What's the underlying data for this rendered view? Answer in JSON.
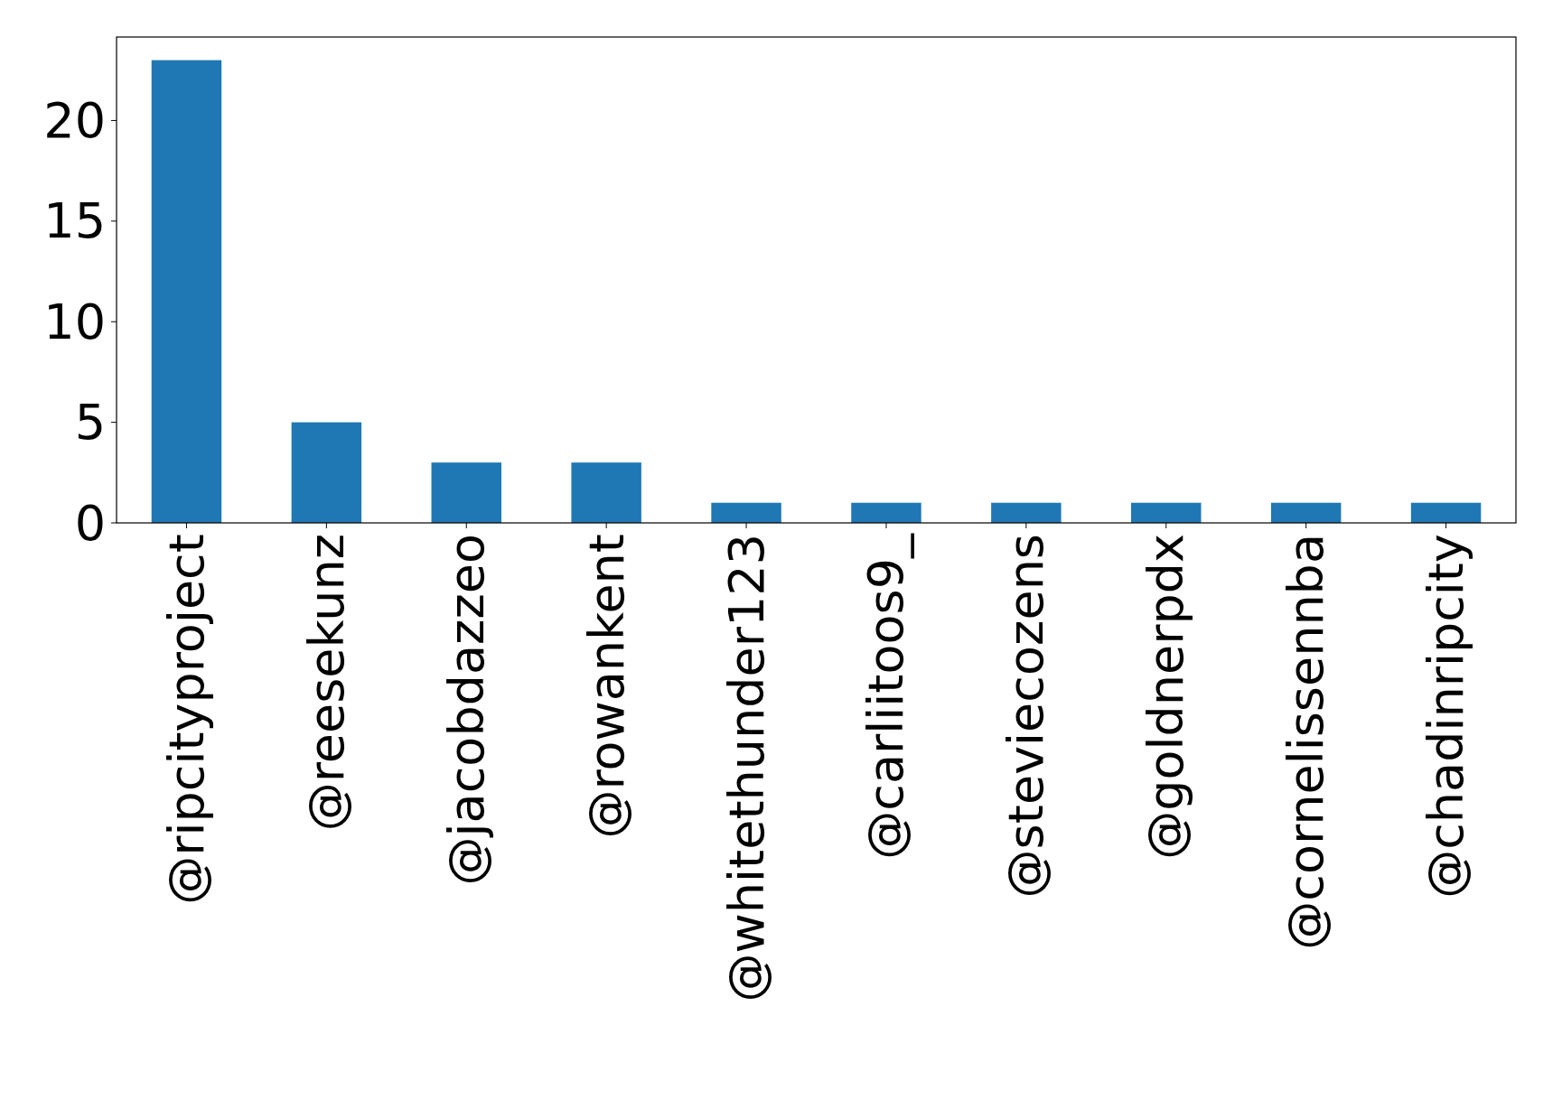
{
  "chart_data": {
    "type": "bar",
    "categories": [
      "@ripcityproject",
      "@reesekunz",
      "@jacobdazzeo",
      "@rowankent",
      "@whitethunder123",
      "@carliitoos9_",
      "@steviecozens",
      "@goldnerpdx",
      "@cornelissennba",
      "@chadinripcity"
    ],
    "values": [
      23,
      5,
      3,
      3,
      1,
      1,
      1,
      1,
      1,
      1
    ],
    "color": "#1f77b4",
    "ylim": [
      0,
      24.15
    ],
    "yticks": [
      0,
      5,
      10,
      15,
      20
    ]
  }
}
